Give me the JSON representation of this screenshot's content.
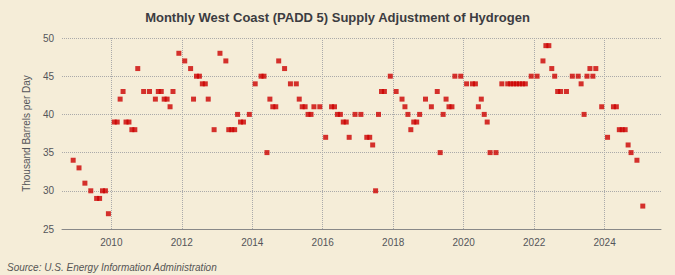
{
  "chart_data": {
    "type": "scatter",
    "title": "Monthly West Coast (PADD 5) Supply Adjustment of Hydrogen",
    "ylabel": "Thousand Barrels per Day",
    "annotations": [
      "Source: U.S. Energy Information Administration"
    ],
    "color": "#cc0000",
    "marker": "square",
    "grid": true,
    "xlim": [
      2008.6,
      2025.6
    ],
    "xticks": [
      2010,
      2012,
      2014,
      2016,
      2018,
      2020,
      2022,
      2024
    ],
    "ylim": [
      25,
      50
    ],
    "yticks": [
      25,
      30,
      35,
      40,
      45,
      50
    ],
    "x": [
      2008.917,
      2009.083,
      2009.25,
      2009.417,
      2009.583,
      2009.667,
      2009.75,
      2009.833,
      2009.917,
      2010.083,
      2010.167,
      2010.25,
      2010.333,
      2010.417,
      2010.5,
      2010.583,
      2010.667,
      2010.75,
      2010.917,
      2011.083,
      2011.25,
      2011.333,
      2011.417,
      2011.5,
      2011.583,
      2011.667,
      2011.75,
      2011.917,
      2012.083,
      2012.25,
      2012.333,
      2012.417,
      2012.5,
      2012.583,
      2012.667,
      2012.75,
      2012.917,
      2013.083,
      2013.25,
      2013.333,
      2013.417,
      2013.5,
      2013.583,
      2013.667,
      2013.75,
      2013.917,
      2014.083,
      2014.25,
      2014.333,
      2014.417,
      2014.5,
      2014.583,
      2014.667,
      2014.75,
      2014.917,
      2015.083,
      2015.25,
      2015.333,
      2015.417,
      2015.5,
      2015.583,
      2015.667,
      2015.75,
      2015.917,
      2016.083,
      2016.25,
      2016.333,
      2016.417,
      2016.5,
      2016.583,
      2016.667,
      2016.75,
      2016.917,
      2017.083,
      2017.25,
      2017.333,
      2017.417,
      2017.5,
      2017.583,
      2017.667,
      2017.75,
      2017.917,
      2018.083,
      2018.25,
      2018.333,
      2018.417,
      2018.5,
      2018.583,
      2018.667,
      2018.75,
      2018.917,
      2019.083,
      2019.25,
      2019.333,
      2019.417,
      2019.5,
      2019.583,
      2019.667,
      2019.75,
      2019.917,
      2020.083,
      2020.25,
      2020.333,
      2020.417,
      2020.5,
      2020.583,
      2020.667,
      2020.75,
      2020.917,
      2021.083,
      2021.25,
      2021.333,
      2021.417,
      2021.5,
      2021.583,
      2021.667,
      2021.75,
      2021.917,
      2022.083,
      2022.25,
      2022.333,
      2022.417,
      2022.5,
      2022.583,
      2022.667,
      2022.75,
      2022.917,
      2023.083,
      2023.25,
      2023.333,
      2023.417,
      2023.5,
      2023.583,
      2023.667,
      2023.75,
      2023.917,
      2024.083,
      2024.25,
      2024.333,
      2024.417,
      2024.5,
      2024.583,
      2024.667,
      2024.75,
      2024.917,
      2025.083
    ],
    "values": [
      34,
      33,
      31,
      30,
      29,
      29,
      30,
      30,
      27,
      39,
      39,
      42,
      43,
      39,
      39,
      38,
      38,
      46,
      43,
      43,
      42,
      43,
      43,
      42,
      42,
      41,
      43,
      48,
      47,
      46,
      42,
      45,
      45,
      44,
      44,
      42,
      38,
      48,
      47,
      38,
      38,
      38,
      40,
      39,
      39,
      40,
      44,
      45,
      45,
      35,
      42,
      41,
      41,
      47,
      46,
      44,
      44,
      42,
      41,
      41,
      40,
      40,
      41,
      41,
      37,
      41,
      41,
      40,
      40,
      39,
      39,
      37,
      40,
      40,
      37,
      37,
      36,
      30,
      40,
      43,
      43,
      45,
      43,
      42,
      41,
      40,
      38,
      39,
      39,
      40,
      42,
      41,
      43,
      35,
      40,
      42,
      41,
      41,
      45,
      45,
      44,
      44,
      44,
      41,
      42,
      40,
      39,
      35,
      35,
      44,
      44,
      44,
      44,
      44,
      44,
      44,
      44,
      45,
      45,
      47,
      49,
      49,
      46,
      45,
      43,
      43,
      43,
      45,
      45,
      44,
      40,
      45,
      46,
      45,
      46,
      41,
      37,
      41,
      41,
      38,
      38,
      38,
      36,
      35,
      34,
      28
    ]
  }
}
